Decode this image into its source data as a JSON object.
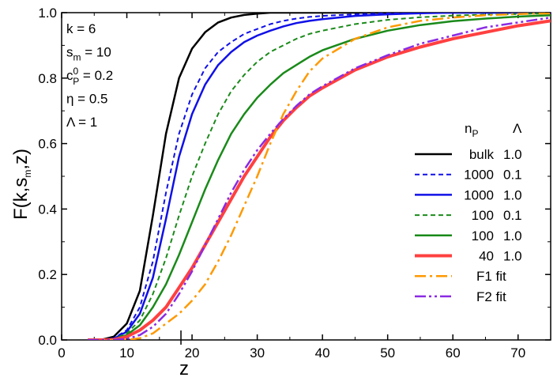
{
  "chart_data": {
    "type": "line",
    "x": [
      4,
      6,
      8,
      10,
      12,
      14,
      16,
      18,
      20,
      22,
      24,
      26,
      28,
      30,
      32,
      34,
      36,
      38,
      40,
      45,
      50,
      55,
      60,
      65,
      70,
      75
    ],
    "series": [
      {
        "name": "bulk",
        "lambda": "1.0",
        "color": "#000000",
        "linestyle": "solid",
        "width": 2.5,
        "values": [
          0,
          0,
          0.01,
          0.05,
          0.15,
          0.38,
          0.63,
          0.8,
          0.89,
          0.94,
          0.97,
          0.985,
          0.993,
          0.997,
          1,
          1,
          1,
          1,
          1,
          1,
          1,
          1,
          1,
          1,
          1,
          1
        ]
      },
      {
        "name": "1000",
        "lambda": "0.1",
        "color": "#1010e8",
        "linestyle": "dash",
        "width": 2,
        "values": [
          0,
          0,
          0.005,
          0.03,
          0.1,
          0.24,
          0.45,
          0.63,
          0.75,
          0.83,
          0.88,
          0.91,
          0.935,
          0.95,
          0.965,
          0.975,
          0.982,
          0.987,
          0.99,
          0.995,
          0.998,
          1,
          1,
          1,
          1,
          1
        ]
      },
      {
        "name": "1000",
        "lambda": "1.0",
        "color": "#1010e8",
        "linestyle": "solid",
        "width": 2.5,
        "values": [
          0,
          0,
          0.004,
          0.025,
          0.08,
          0.19,
          0.37,
          0.56,
          0.69,
          0.78,
          0.84,
          0.88,
          0.91,
          0.93,
          0.945,
          0.958,
          0.968,
          0.975,
          0.98,
          0.99,
          0.995,
          0.998,
          1,
          1,
          1,
          1
        ]
      },
      {
        "name": "100",
        "lambda": "0.1",
        "color": "#1a8a1a",
        "linestyle": "dash",
        "width": 2,
        "values": [
          0,
          0,
          0.003,
          0.02,
          0.06,
          0.14,
          0.25,
          0.38,
          0.5,
          0.6,
          0.69,
          0.76,
          0.81,
          0.85,
          0.88,
          0.9,
          0.92,
          0.935,
          0.945,
          0.965,
          0.978,
          0.986,
          0.991,
          0.994,
          0.996,
          0.998
        ]
      },
      {
        "name": "100",
        "lambda": "1.0",
        "color": "#1a8a1a",
        "linestyle": "solid",
        "width": 2.5,
        "values": [
          0,
          0,
          0.002,
          0.015,
          0.045,
          0.1,
          0.17,
          0.26,
          0.36,
          0.46,
          0.55,
          0.63,
          0.69,
          0.74,
          0.78,
          0.815,
          0.84,
          0.865,
          0.885,
          0.92,
          0.945,
          0.962,
          0.974,
          0.982,
          0.988,
          0.992
        ]
      },
      {
        "name": "40",
        "lambda": "1.0",
        "color": "#ff4040",
        "linestyle": "solid",
        "width": 4,
        "values": [
          0,
          0,
          0.001,
          0.01,
          0.03,
          0.06,
          0.1,
          0.16,
          0.22,
          0.29,
          0.36,
          0.43,
          0.5,
          0.56,
          0.62,
          0.67,
          0.71,
          0.745,
          0.77,
          0.825,
          0.865,
          0.895,
          0.92,
          0.94,
          0.96,
          0.975
        ]
      },
      {
        "name": "F1 fit",
        "color": "#ff9900",
        "linestyle": "dashdot",
        "width": 2.5,
        "values": [
          0,
          0,
          0,
          0,
          0.005,
          0.02,
          0.05,
          0.08,
          0.12,
          0.17,
          0.24,
          0.32,
          0.41,
          0.5,
          0.6,
          0.69,
          0.76,
          0.82,
          0.86,
          0.92,
          0.955,
          0.975,
          0.985,
          0.992,
          0.996,
          0.998
        ]
      },
      {
        "name": "F2 fit",
        "color": "#8a2be2",
        "linestyle": "dashdotdot",
        "width": 2.5,
        "values": [
          0,
          0,
          0,
          0.003,
          0.015,
          0.04,
          0.08,
          0.14,
          0.21,
          0.29,
          0.37,
          0.45,
          0.52,
          0.58,
          0.63,
          0.675,
          0.715,
          0.75,
          0.775,
          0.83,
          0.87,
          0.905,
          0.93,
          0.955,
          0.97,
          0.985
        ]
      }
    ],
    "xlabel": "z",
    "ylabel": {
      "base": "F(k,s",
      "sub": "m",
      "tail": ",z)"
    },
    "xlim": [
      0,
      75
    ],
    "xticks": [
      0,
      10,
      20,
      30,
      40,
      50,
      60,
      70
    ],
    "ylim": [
      0,
      1
    ],
    "yticks": [
      {
        "value": 0,
        "label": "0.0"
      },
      {
        "value": 0.2,
        "label": "0.2"
      },
      {
        "value": 0.4,
        "label": "0.4"
      },
      {
        "value": 0.6,
        "label": "0.6"
      },
      {
        "value": 0.8,
        "label": "0.8"
      },
      {
        "value": 1,
        "label": "1.0"
      }
    ],
    "marker_x": 18.3,
    "legend_header": {
      "base": "n",
      "sub": "P",
      "lambda": "Λ"
    },
    "annotations": [
      {
        "base": "k = 6"
      },
      {
        "base": "s",
        "sub": "m",
        "tail": " = 10"
      },
      {
        "base": "c",
        "sup": "0",
        "sub": "P",
        "tail": " = 0.2"
      },
      {
        "base": "η = 0.5"
      },
      {
        "base": "Λ = 1"
      }
    ],
    "legend": "right",
    "grid": false
  }
}
